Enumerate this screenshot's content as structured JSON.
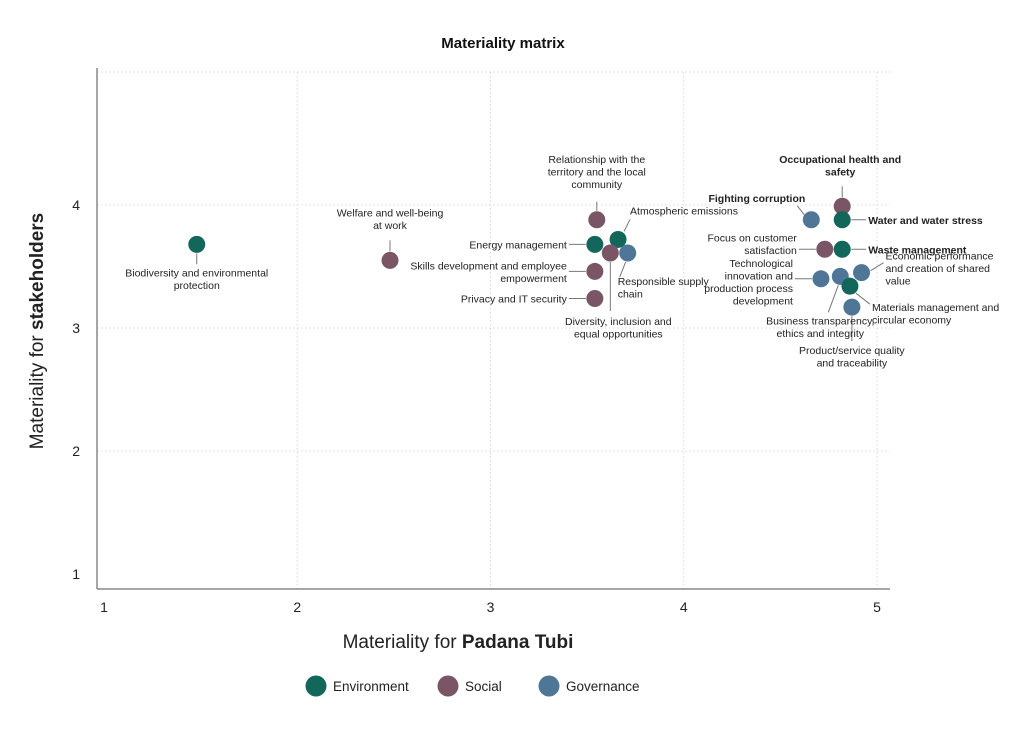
{
  "chart_data": {
    "type": "scatter",
    "title": "Materiality matrix",
    "xlabel_prefix": "Materiality for ",
    "xlabel_emphasis": "Padana Tubi",
    "ylabel_prefix": "Materiality for ",
    "ylabel_emphasis": "stakeholders",
    "xlim": [
      1,
      5
    ],
    "ylim": [
      1,
      5
    ],
    "xticks": [
      "1",
      "2",
      "3",
      "4",
      "5"
    ],
    "yticks": [
      "1",
      "2",
      "3",
      "4"
    ],
    "grid": true,
    "legend_position": "bottom-center",
    "categories": [
      {
        "key": "env",
        "name": "Environment",
        "color": "#13675a"
      },
      {
        "key": "soc",
        "name": "Social",
        "color": "#7a5566"
      },
      {
        "key": "gov",
        "name": "Governance",
        "color": "#4f7697"
      }
    ],
    "points": [
      {
        "id": "biodiversity",
        "label": "Biodiversity and environmental\nprotection",
        "category": "env",
        "x": 1.48,
        "y": 3.68,
        "bold": false
      },
      {
        "id": "welfare",
        "label": "Welfare and well-being\nat work",
        "category": "soc",
        "x": 2.48,
        "y": 3.55,
        "bold": false
      },
      {
        "id": "territory",
        "label": "Relationship with the\nterritory and the local\ncommunity",
        "category": "soc",
        "x": 3.55,
        "y": 3.88,
        "bold": false
      },
      {
        "id": "atmospheric",
        "label": "Atmospheric emissions",
        "category": "env",
        "x": 3.66,
        "y": 3.72,
        "bold": false
      },
      {
        "id": "energy",
        "label": "Energy management",
        "category": "env",
        "x": 3.54,
        "y": 3.68,
        "bold": false
      },
      {
        "id": "responsible-supply",
        "label": "Responsible supply\nchain",
        "category": "gov",
        "x": 3.71,
        "y": 3.61,
        "bold": false
      },
      {
        "id": "diversity",
        "label": "Diversity, inclusion and\nequal opportunities",
        "category": "soc",
        "x": 3.62,
        "y": 3.61,
        "bold": false
      },
      {
        "id": "skills",
        "label": "Skills development and employee\nempowerment",
        "category": "soc",
        "x": 3.54,
        "y": 3.46,
        "bold": false
      },
      {
        "id": "privacy",
        "label": "Privacy and IT security",
        "category": "soc",
        "x": 3.54,
        "y": 3.24,
        "bold": false
      },
      {
        "id": "ohs",
        "label": "Occupational health and\nsafety",
        "category": "soc",
        "x": 4.82,
        "y": 3.99,
        "bold": true
      },
      {
        "id": "corruption",
        "label": "Fighting corruption",
        "category": "gov",
        "x": 4.66,
        "y": 3.88,
        "bold": true
      },
      {
        "id": "water",
        "label": "Water and water stress",
        "category": "env",
        "x": 4.82,
        "y": 3.88,
        "bold": true
      },
      {
        "id": "customer",
        "label": "Focus on customer\nsatisfaction",
        "category": "soc",
        "x": 4.73,
        "y": 3.64,
        "bold": false
      },
      {
        "id": "waste",
        "label": "Waste management",
        "category": "env",
        "x": 4.82,
        "y": 3.64,
        "bold": true
      },
      {
        "id": "techinno",
        "label": "Technological\ninnovation and\nproduction process\ndevelopment",
        "category": "gov",
        "x": 4.71,
        "y": 3.4,
        "bold": false
      },
      {
        "id": "transparency",
        "label": "Business transparency,\nethics and integrity",
        "category": "gov",
        "x": 4.81,
        "y": 3.42,
        "bold": false
      },
      {
        "id": "economic",
        "label": "Economic performance\nand creation of shared\nvalue",
        "category": "gov",
        "x": 4.92,
        "y": 3.45,
        "bold": false
      },
      {
        "id": "materials",
        "label": "Materials management and\ncircular economy",
        "category": "env",
        "x": 4.86,
        "y": 3.34,
        "bold": false
      },
      {
        "id": "product",
        "label": "Product/service quality\nand traceability",
        "category": "gov",
        "x": 4.87,
        "y": 3.17,
        "bold": false
      }
    ]
  }
}
